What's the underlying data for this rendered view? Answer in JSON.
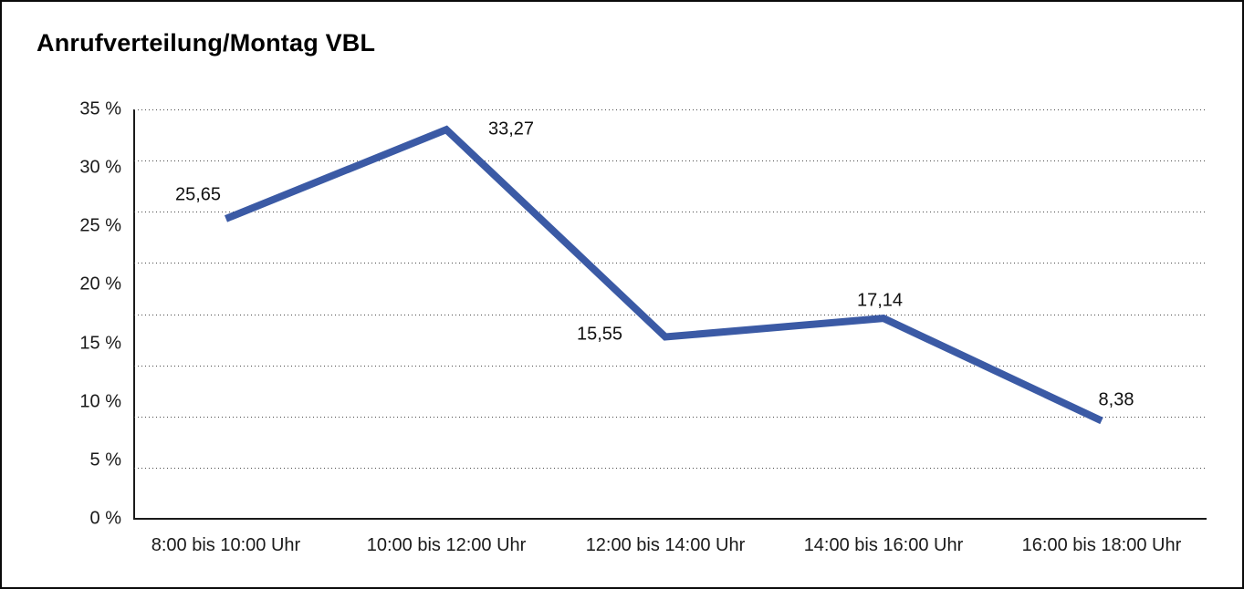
{
  "chart_data": {
    "type": "line",
    "title": "Anrufverteilung/Montag VBL",
    "categories": [
      "8:00 bis 10:00 Uhr",
      "10:00 bis 12:00 Uhr",
      "12:00 bis 14:00 Uhr",
      "14:00 bis 16:00 Uhr",
      "16:00 bis 18:00 Uhr"
    ],
    "values": [
      25.65,
      33.27,
      15.55,
      17.14,
      8.38
    ],
    "point_labels": [
      "25,65",
      "33,27",
      "15,55",
      "17,14",
      "8,38"
    ],
    "xlabel": "",
    "ylabel": "",
    "ylim": [
      0,
      35
    ],
    "yticks": [
      0,
      5,
      10,
      15,
      20,
      25,
      30,
      35
    ],
    "ytick_labels": [
      "0 %",
      "5 %",
      "10 %",
      "15 %",
      "20 %",
      "25 %",
      "30 %",
      "35 %"
    ],
    "grid": "horizontal-dotted",
    "grid_divisions": 8,
    "legend": "none",
    "line_color": "#3B5AA5",
    "axis_color": "#1a1a1a",
    "text_color": "#1a1a1a"
  }
}
